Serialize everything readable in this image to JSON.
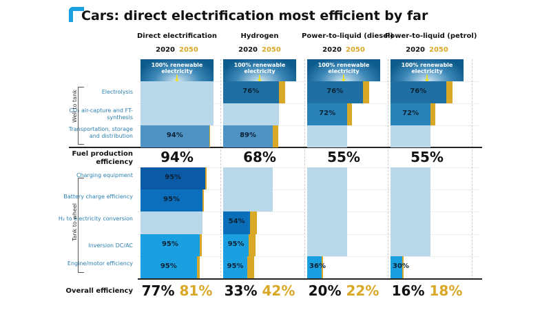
{
  "title": "Cars: direct electrification most efficient by far",
  "year_labels": {
    "a": "2020",
    "b": "2050"
  },
  "colors": {
    "accent": "#1aa0e0",
    "gold": "#d9a826",
    "pale": "#b9d9ea",
    "header": "#0d5c8c"
  },
  "header_box_label": "100% renewable electricity",
  "groups": {
    "well_to_tank": "Well to tank",
    "tank_to_wheel": "Tank to wheel"
  },
  "rows": [
    {
      "label": "Electrolysis",
      "color": "#1f6fa3"
    },
    {
      "label": "CO₂ air-capture and FT-synthesis",
      "color": "#2a83b8"
    },
    {
      "label": "Transportation, storage and distribution",
      "color": "#4e93c4"
    },
    {
      "label": "Charging equipment",
      "color": "#0b5aa5"
    },
    {
      "label": "Battery charge efficiency",
      "color": "#0c6fbd"
    },
    {
      "label": "H₂ to electricity conversion",
      "color": "#0a6fb8"
    },
    {
      "label": "Inversion DC/AC",
      "color": "#1aa0e0"
    },
    {
      "label": "Engine/motor efficiency",
      "color": "#1aa0e0"
    }
  ],
  "fuel_production_label": "Fuel production efficiency",
  "overall_label": "Overall efficiency",
  "columns": [
    {
      "name": "Direct electrification",
      "fuel_production": "94%",
      "overall_2020": "77%",
      "overall_2050": "81%",
      "cells": [
        {
          "kind": "pass",
          "label": "",
          "fill_2020": 1.0,
          "fill_2050": 1.0
        },
        {
          "kind": "pass",
          "label": "",
          "fill_2020": 1.0,
          "fill_2050": 1.0
        },
        {
          "kind": "step",
          "label": "94%",
          "fill_2020": 0.94,
          "fill_2050": 0.95
        },
        {
          "kind": "step",
          "label": "95%",
          "fill_2020": 0.89,
          "fill_2050": 0.895
        },
        {
          "kind": "step",
          "label": "95%",
          "fill_2020": 0.85,
          "fill_2050": 0.87
        },
        {
          "kind": "pass",
          "label": "",
          "fill_2020": 0.85,
          "fill_2050": 0.85
        },
        {
          "kind": "step",
          "label": "95%",
          "fill_2020": 0.81,
          "fill_2050": 0.84
        },
        {
          "kind": "step",
          "label": "95%",
          "fill_2020": 0.77,
          "fill_2050": 0.81
        }
      ]
    },
    {
      "name": "Hydrogen",
      "fuel_production": "68%",
      "overall_2020": "33%",
      "overall_2050": "42%",
      "cells": [
        {
          "kind": "step",
          "label": "76%",
          "fill_2020": 0.76,
          "fill_2050": 0.85
        },
        {
          "kind": "pass",
          "label": "",
          "fill_2020": 0.76,
          "fill_2050": 0.76
        },
        {
          "kind": "step",
          "label": "89%",
          "fill_2020": 0.68,
          "fill_2050": 0.75
        },
        {
          "kind": "pass",
          "label": "",
          "fill_2020": 0.68,
          "fill_2050": 0.68
        },
        {
          "kind": "pass",
          "label": "",
          "fill_2020": 0.68,
          "fill_2050": 0.68
        },
        {
          "kind": "step",
          "label": "54%",
          "fill_2020": 0.37,
          "fill_2050": 0.46
        },
        {
          "kind": "step",
          "label": "95%",
          "fill_2020": 0.35,
          "fill_2050": 0.44
        },
        {
          "kind": "step",
          "label": "95%",
          "fill_2020": 0.33,
          "fill_2050": 0.42
        }
      ]
    },
    {
      "name": "Power-to-liquid (diesel)",
      "fuel_production": "55%",
      "overall_2020": "20%",
      "overall_2050": "22%",
      "cells": [
        {
          "kind": "step",
          "label": "76%",
          "fill_2020": 0.76,
          "fill_2050": 0.85
        },
        {
          "kind": "step",
          "label": "72%",
          "fill_2020": 0.55,
          "fill_2050": 0.61
        },
        {
          "kind": "pass",
          "label": "",
          "fill_2020": 0.55,
          "fill_2050": 0.55
        },
        {
          "kind": "pass",
          "label": "",
          "fill_2020": 0.55,
          "fill_2050": 0.55
        },
        {
          "kind": "pass",
          "label": "",
          "fill_2020": 0.55,
          "fill_2050": 0.55
        },
        {
          "kind": "pass",
          "label": "",
          "fill_2020": 0.55,
          "fill_2050": 0.55
        },
        {
          "kind": "pass",
          "label": "",
          "fill_2020": 0.55,
          "fill_2050": 0.55
        },
        {
          "kind": "step",
          "label": "36%",
          "fill_2020": 0.2,
          "fill_2050": 0.22
        }
      ]
    },
    {
      "name": "Power-to-liquid (petrol)",
      "fuel_production": "55%",
      "overall_2020": "16%",
      "overall_2050": "18%",
      "cells": [
        {
          "kind": "step",
          "label": "76%",
          "fill_2020": 0.76,
          "fill_2050": 0.85
        },
        {
          "kind": "step",
          "label": "72%",
          "fill_2020": 0.55,
          "fill_2050": 0.61
        },
        {
          "kind": "pass",
          "label": "",
          "fill_2020": 0.55,
          "fill_2050": 0.55
        },
        {
          "kind": "pass",
          "label": "",
          "fill_2020": 0.55,
          "fill_2050": 0.55
        },
        {
          "kind": "pass",
          "label": "",
          "fill_2020": 0.55,
          "fill_2050": 0.55
        },
        {
          "kind": "pass",
          "label": "",
          "fill_2020": 0.55,
          "fill_2050": 0.55
        },
        {
          "kind": "pass",
          "label": "",
          "fill_2020": 0.55,
          "fill_2050": 0.55
        },
        {
          "kind": "step",
          "label": "30%",
          "fill_2020": 0.16,
          "fill_2050": 0.18
        }
      ]
    }
  ]
}
